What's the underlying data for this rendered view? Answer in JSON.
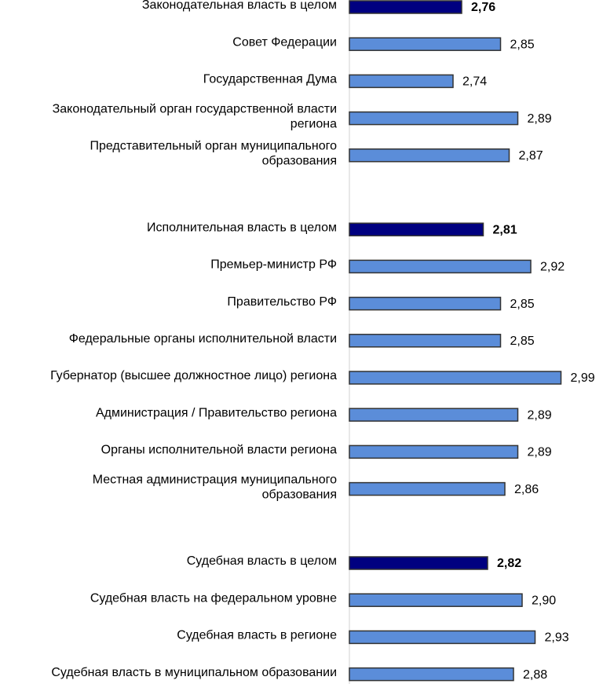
{
  "chart_data": {
    "type": "bar",
    "orientation": "horizontal",
    "title": "",
    "xlabel": "",
    "ylabel": "",
    "xlim": [
      2.5,
      3.0
    ],
    "grid": false,
    "legend": "none",
    "colors": {
      "summary": "#000080",
      "item": "#5B8DD9",
      "border": "#333333",
      "axis": "#d0d0d0"
    },
    "categories": [
      "Законодательная власть в целом",
      "Совет Федерации",
      "Государственная Дума",
      "Законодательный орган государственной власти региона",
      "Представительный орган муниципального образования",
      "",
      "Исполнительная власть в целом",
      "Премьер-министр РФ",
      "Правительство РФ",
      "Федеральные органы исполнительной власти",
      "Губернатор (высшее должностное лицо) региона",
      "Администрация / Правительство региона",
      "Органы исполнительной власти региона",
      "Местная администрация муниципального образования",
      "",
      "Судебная власть в целом",
      "Судебная власть на федеральном уровне",
      "Судебная власть в регионе",
      "Судебная власть в муниципальном образовании"
    ],
    "label_lines": [
      [
        "Законодательная власть в целом"
      ],
      [
        "Совет Федерации"
      ],
      [
        "Государственная Дума"
      ],
      [
        "Законодательный орган государственной власти",
        "региона"
      ],
      [
        "Представительный орган муниципального",
        "образования"
      ],
      [],
      [
        "Исполнительная власть в целом"
      ],
      [
        "Премьер-министр РФ"
      ],
      [
        "Правительство РФ"
      ],
      [
        "Федеральные органы исполнительной власти"
      ],
      [
        "Губернатор (высшее должностное лицо) региона"
      ],
      [
        "Администрация / Правительство региона"
      ],
      [
        "Органы исполнительной власти региона"
      ],
      [
        "Местная администрация муниципального",
        "образования"
      ],
      [],
      [
        "Судебная власть в целом"
      ],
      [
        "Судебная власть на федеральном уровне"
      ],
      [
        "Судебная власть в регионе"
      ],
      [
        "Судебная власть в муниципальном образовании"
      ]
    ],
    "values": [
      2.76,
      2.85,
      2.74,
      2.89,
      2.87,
      null,
      2.81,
      2.92,
      2.85,
      2.85,
      2.99,
      2.89,
      2.89,
      2.86,
      null,
      2.82,
      2.9,
      2.93,
      2.88
    ],
    "value_labels": [
      "2,76",
      "2,85",
      "2,74",
      "2,89",
      "2,87",
      "",
      "2,81",
      "2,92",
      "2,85",
      "2,85",
      "2,99",
      "2,89",
      "2,89",
      "2,86",
      "",
      "2,82",
      "2,90",
      "2,93",
      "2,88"
    ],
    "summary_rows": [
      true,
      false,
      false,
      false,
      false,
      false,
      true,
      false,
      false,
      false,
      false,
      false,
      false,
      false,
      false,
      true,
      false,
      false,
      false
    ]
  }
}
